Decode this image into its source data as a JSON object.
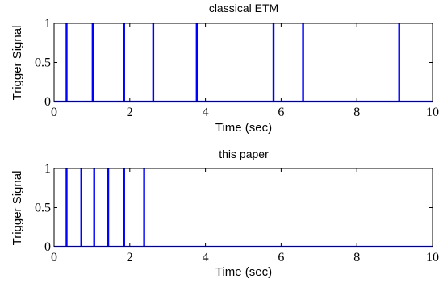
{
  "chart_data": [
    {
      "type": "line",
      "title": "classical ETM",
      "xlabel": "Time (sec)",
      "ylabel": "Trigger Signal",
      "xlim": [
        0,
        10
      ],
      "ylim": [
        0,
        1
      ],
      "xticks": [
        "0",
        "2",
        "4",
        "6",
        "8",
        "10"
      ],
      "yticks": [
        "0",
        "0.5",
        "1"
      ],
      "grid": false,
      "color": "#0000ff",
      "events": [
        0.33,
        1.02,
        1.85,
        2.62,
        3.77,
        5.8,
        6.58,
        9.12
      ]
    },
    {
      "type": "line",
      "title": "this paper",
      "xlabel": "Time (sec)",
      "ylabel": "Trigger Signal",
      "xlim": [
        0,
        10
      ],
      "ylim": [
        0,
        1
      ],
      "xticks": [
        "0",
        "2",
        "4",
        "6",
        "8",
        "10"
      ],
      "yticks": [
        "0",
        "0.5",
        "1"
      ],
      "grid": false,
      "color": "#0000ff",
      "events": [
        0.33,
        0.72,
        1.06,
        1.43,
        1.85,
        2.38
      ]
    }
  ]
}
